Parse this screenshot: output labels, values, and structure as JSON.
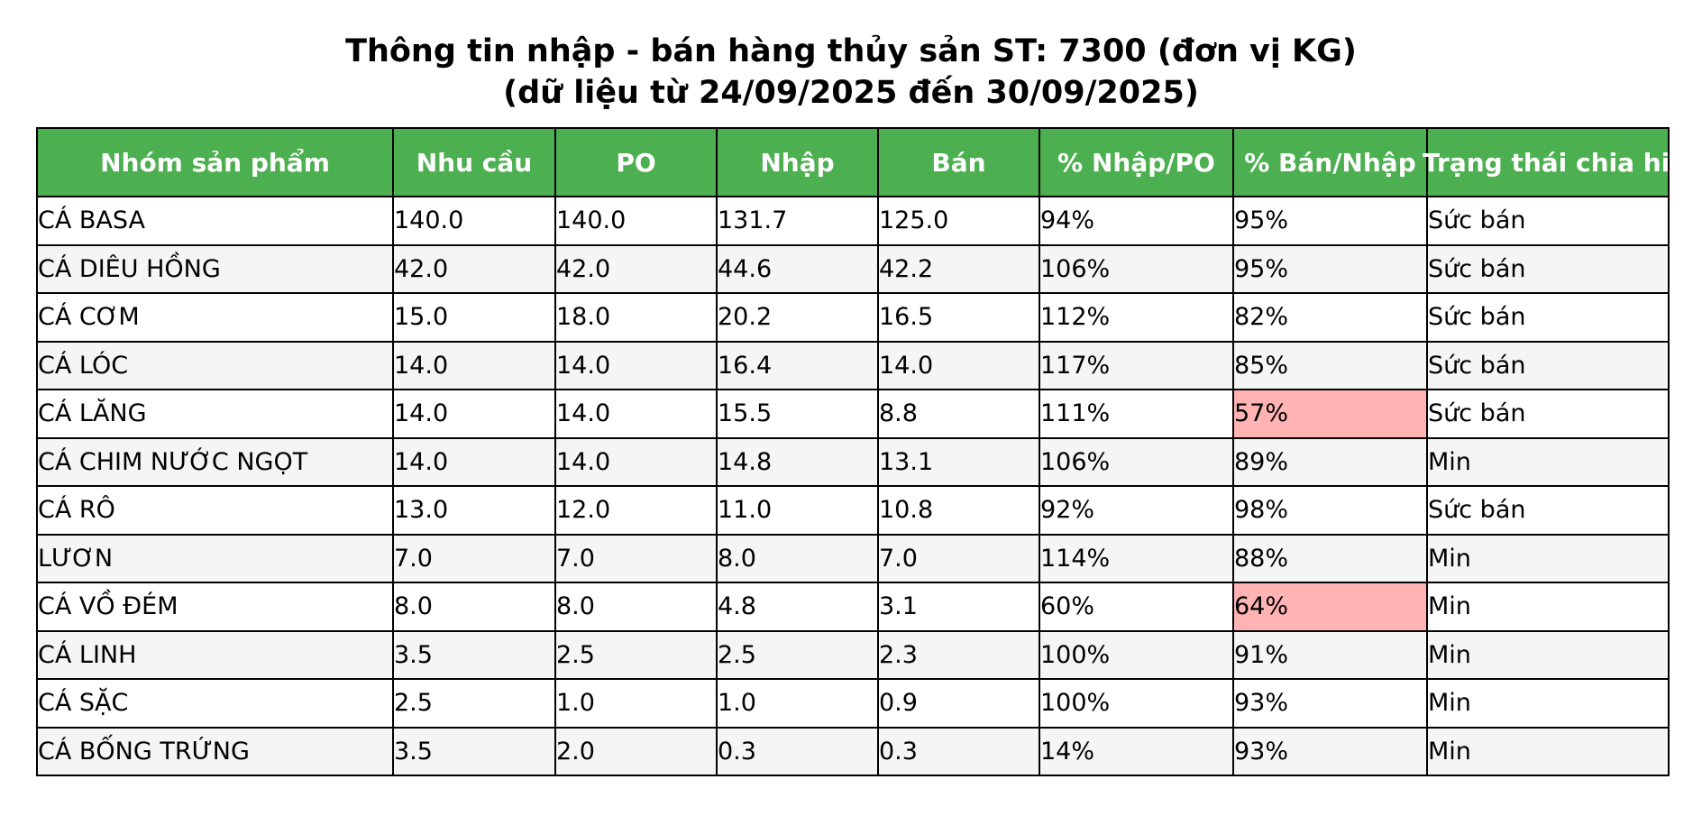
{
  "chart_data": {
    "type": "table",
    "title": "Thông tin nhập - bán hàng thủy sản ST: 7300 (đơn vị KG)",
    "subtitle": "(dữ liệu từ 24/09/2025 đến 30/09/2025)",
    "columns": [
      "Nhóm sản phẩm",
      "Nhu cầu",
      "PO",
      "Nhập",
      "Bán",
      "% Nhập/PO",
      "% Bán/Nhập",
      "Trạng thái chia hiện"
    ],
    "rows": [
      [
        "CÁ BASA",
        "140.0",
        "140.0",
        "131.7",
        "125.0",
        "94%",
        "95%",
        "Sức bán"
      ],
      [
        "CÁ DIÊU HỒNG",
        "42.0",
        "42.0",
        "44.6",
        "42.2",
        "106%",
        "95%",
        "Sức bán"
      ],
      [
        "CÁ CƠM",
        "15.0",
        "18.0",
        "20.2",
        "16.5",
        "112%",
        "82%",
        "Sức bán"
      ],
      [
        "CÁ LÓC",
        "14.0",
        "14.0",
        "16.4",
        "14.0",
        "117%",
        "85%",
        "Sức bán"
      ],
      [
        "CÁ LĂNG",
        "14.0",
        "14.0",
        "15.5",
        "8.8",
        "111%",
        "57%",
        "Sức bán"
      ],
      [
        "CÁ CHIM NƯỚC NGỌT",
        "14.0",
        "14.0",
        "14.8",
        "13.1",
        "106%",
        "89%",
        "Min"
      ],
      [
        "CÁ RÔ",
        "13.0",
        "12.0",
        "11.0",
        "10.8",
        "92%",
        "98%",
        "Sức bán"
      ],
      [
        "LƯƠN",
        "7.0",
        "7.0",
        "8.0",
        "7.0",
        "114%",
        "88%",
        "Min"
      ],
      [
        "CÁ VỒ ĐÉM",
        "8.0",
        "8.0",
        "4.8",
        "3.1",
        "60%",
        "64%",
        "Min"
      ],
      [
        "CÁ LINH",
        "3.5",
        "2.5",
        "2.5",
        "2.3",
        "100%",
        "91%",
        "Min"
      ],
      [
        "CÁ SẶC",
        "2.5",
        "1.0",
        "1.0",
        "0.9",
        "100%",
        "93%",
        "Min"
      ],
      [
        "CÁ BỐNG TRỨNG",
        "3.5",
        "2.0",
        "0.3",
        "0.3",
        "14%",
        "93%",
        "Min"
      ]
    ],
    "highlighted_cells": [
      [
        4,
        6
      ],
      [
        8,
        6
      ]
    ],
    "colors": {
      "header_bg": "#4caf50",
      "header_text": "#ffffff",
      "highlight": "#ffb3b3",
      "row_alt": "#f5f5f5",
      "row": "#ffffff",
      "border": "#000000"
    }
  }
}
